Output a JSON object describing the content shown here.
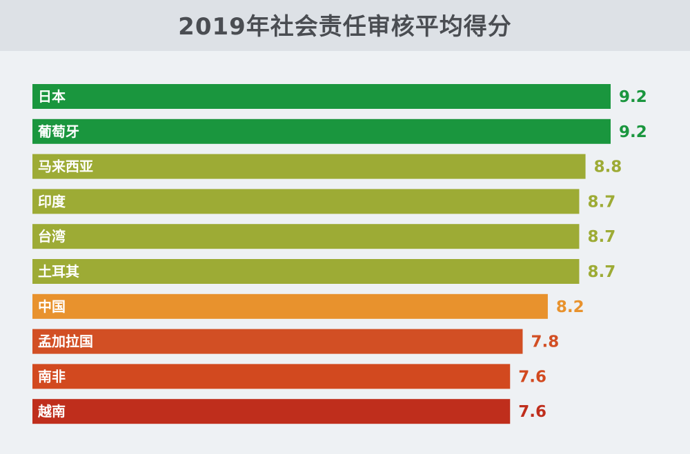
{
  "chart_data": {
    "type": "bar",
    "orientation": "horizontal",
    "title": "2019年社会责任审核平均得分",
    "categories": [
      "日本",
      "葡萄牙",
      "马来西亚",
      "印度",
      "台湾",
      "土耳其",
      "中国",
      "孟加拉国",
      "南非",
      "越南"
    ],
    "values": [
      9.2,
      9.2,
      8.8,
      8.7,
      8.7,
      8.7,
      8.2,
      7.8,
      7.6,
      7.6
    ],
    "value_labels": [
      "9.2",
      "9.2",
      "8.8",
      "8.7",
      "8.7",
      "8.7",
      "8.2",
      "7.8",
      "7.6",
      "7.6"
    ],
    "colors": [
      "#1a963e",
      "#1a963e",
      "#9dab35",
      "#9dab35",
      "#9dab35",
      "#9dab35",
      "#e8922d",
      "#d24f24",
      "#d2491f",
      "#bf2e1c"
    ],
    "xlim": [
      0,
      9.2
    ],
    "grid": false,
    "legend": "none",
    "xlabel": "",
    "ylabel": ""
  },
  "colors": {
    "background": "#eef1f4",
    "title_band": "#dde1e6",
    "title_text": "#4a4d52"
  }
}
